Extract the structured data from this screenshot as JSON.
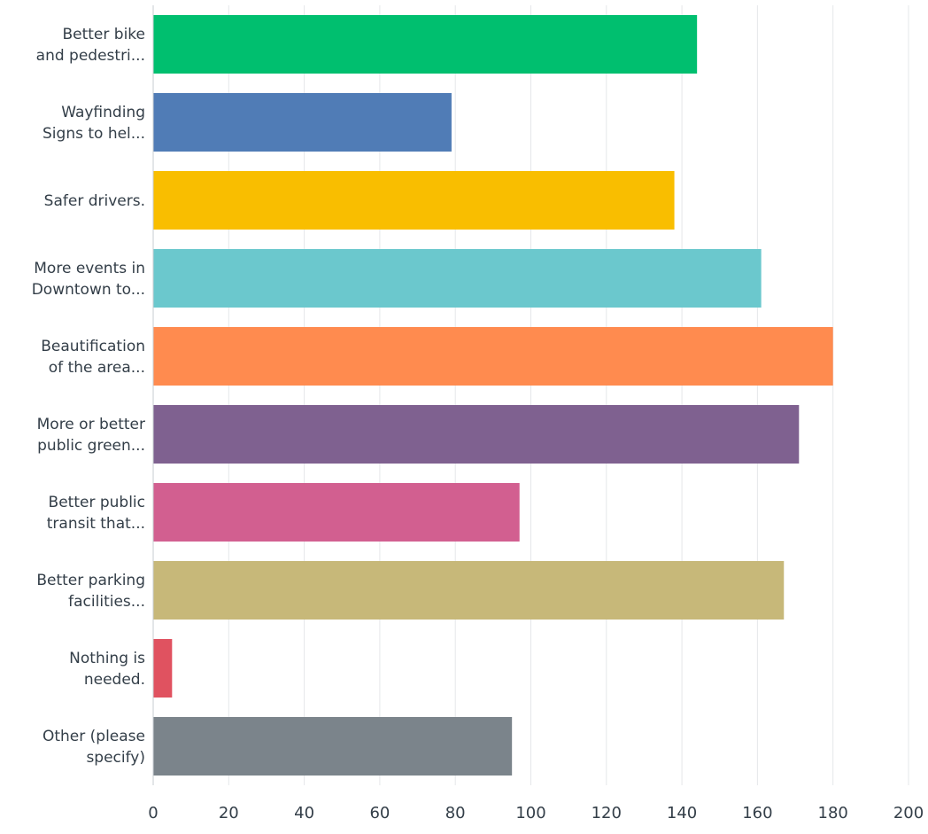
{
  "chart_data": {
    "type": "bar",
    "orientation": "horizontal",
    "categories": [
      [
        "Better bike",
        "and pedestri..."
      ],
      [
        "Wayfinding",
        "Signs to hel..."
      ],
      [
        "Safer drivers."
      ],
      [
        "More events in",
        "Downtown to..."
      ],
      [
        "Beautification",
        "of the area..."
      ],
      [
        "More or better",
        "public green..."
      ],
      [
        "Better public",
        "transit that..."
      ],
      [
        "Better parking",
        "facilities..."
      ],
      [
        "Nothing is",
        "needed."
      ],
      [
        "Other (please",
        "specify)"
      ]
    ],
    "values": [
      144,
      79,
      138,
      161,
      180,
      171,
      97,
      167,
      5,
      95
    ],
    "colors": [
      "#00bf6f",
      "#507cb6",
      "#f9be00",
      "#6bc8cd",
      "#ff8b4f",
      "#7f6190",
      "#d25f90",
      "#c7b879",
      "#e05260",
      "#7b848b"
    ],
    "xlim": [
      0,
      200
    ],
    "xticks": [
      0,
      20,
      40,
      60,
      80,
      100,
      120,
      140,
      160,
      180,
      200
    ],
    "grid": true,
    "title": "",
    "xlabel": "",
    "ylabel": ""
  }
}
